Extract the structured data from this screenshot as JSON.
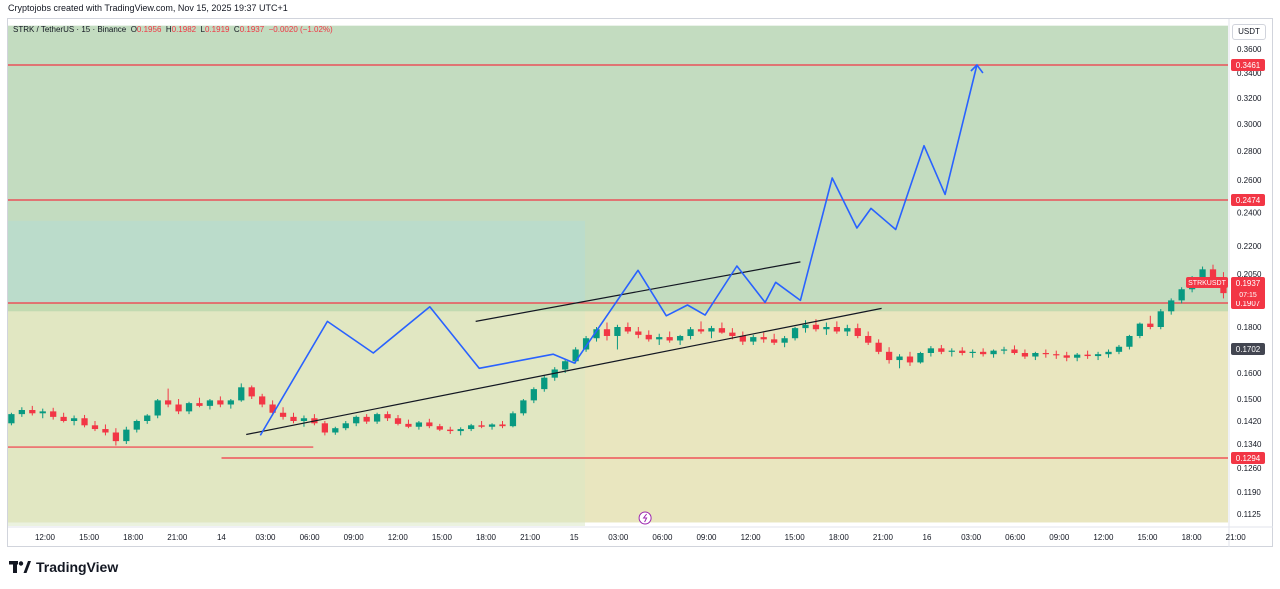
{
  "credit": "Cryptojobs created with TradingView.com, Nov 15, 2025 19:37 UTC+1",
  "legend": {
    "symbol": "STRK / TetherUS · 15 · Binance",
    "o_label": "O",
    "o_value": "0.1956",
    "h_label": "H",
    "h_value": "0.1982",
    "l_label": "L",
    "l_value": "0.1919",
    "c_label": "C",
    "c_value": "0.1937",
    "change": "−0.0020 (−1.02%)"
  },
  "unit_button": "USDT",
  "brand": "TradingView",
  "chart_data": {
    "type": "candlestick",
    "symbol": "STRKUSDT",
    "y_ticks": [
      "0.3600",
      "0.3400",
      "0.3200",
      "0.3000",
      "0.2800",
      "0.2600",
      "0.2400",
      "0.2200",
      "0.2050",
      "0.1800",
      "0.1600",
      "0.1500",
      "0.1420",
      "0.1340",
      "0.1260",
      "0.1190",
      "0.1125"
    ],
    "x_ticks": [
      "12:00",
      "15:00",
      "18:00",
      "21:00",
      "14",
      "03:00",
      "06:00",
      "09:00",
      "12:00",
      "15:00",
      "18:00",
      "21:00",
      "15",
      "03:00",
      "06:00",
      "09:00",
      "12:00",
      "15:00",
      "18:00",
      "21:00",
      "16",
      "03:00",
      "06:00",
      "09:00",
      "12:00",
      "15:00",
      "18:00",
      "21:00"
    ],
    "price_labels": [
      {
        "text": "0.3461",
        "value": 0.3461,
        "color": "#f23645"
      },
      {
        "text": "0.2474",
        "value": 0.2474,
        "color": "#f23645"
      },
      {
        "text": "0.1907",
        "value": 0.1907,
        "color": "#f23645"
      },
      {
        "text": "0.1702",
        "value": 0.1702,
        "color": "#434651"
      },
      {
        "text": "0.1294",
        "value": 0.1294,
        "color": "#f23645"
      }
    ],
    "current_price": {
      "symbol": "STRKUSDT",
      "value_text": "0.1937",
      "countdown": "07:15",
      "value": 0.1937,
      "color": "#f23645"
    },
    "horizontal_levels": [
      {
        "value": 0.3461,
        "color": "#f23645"
      },
      {
        "value": 0.2474,
        "color": "#f23645"
      },
      {
        "value": 0.1907,
        "color": "#f23645"
      },
      {
        "value": 0.133,
        "color": "#f23645",
        "from_day": 0,
        "to_day": 1.26
      },
      {
        "value": 0.1294,
        "color": "#f23645",
        "from_day": 1.0
      }
    ],
    "zones": [
      {
        "name": "upper-green",
        "from": 0.1907,
        "to": 0.38,
        "color": "#c3dcc0"
      },
      {
        "name": "lower-yellow",
        "from": 0.11,
        "to": 0.1907,
        "color": "#e9e6bf"
      }
    ],
    "channel": [
      {
        "name": "channel-upper",
        "from": [
          1.72,
          0.1825
        ],
        "to": [
          2.64,
          0.2115
        ],
        "color": "#131722"
      },
      {
        "name": "channel-lower",
        "from": [
          1.07,
          0.1373
        ],
        "to": [
          2.87,
          0.1883
        ],
        "color": "#131722"
      }
    ],
    "projection_path": [
      [
        1.11,
        0.137
      ],
      [
        1.3,
        0.1825
      ],
      [
        1.43,
        0.1685
      ],
      [
        1.59,
        0.189
      ],
      [
        1.73,
        0.162
      ],
      [
        1.94,
        0.168
      ],
      [
        2.0,
        0.1642
      ],
      [
        2.18,
        0.207
      ],
      [
        2.26,
        0.185
      ],
      [
        2.32,
        0.1898
      ],
      [
        2.37,
        0.1853
      ],
      [
        2.46,
        0.2093
      ],
      [
        2.54,
        0.191
      ],
      [
        2.57,
        0.2009
      ],
      [
        2.64,
        0.192
      ],
      [
        2.73,
        0.2614
      ],
      [
        2.8,
        0.2307
      ],
      [
        2.84,
        0.2424
      ],
      [
        2.91,
        0.2298
      ],
      [
        2.99,
        0.2839
      ],
      [
        3.05,
        0.2509
      ],
      [
        3.14,
        0.3461
      ]
    ],
    "projection_color": "#2962ff",
    "candles": [
      [
        0.142,
        0.143,
        0.14,
        0.141
      ],
      [
        0.141,
        0.142,
        0.139,
        0.14
      ],
      [
        0.14,
        0.1415,
        0.1392,
        0.1408
      ],
      [
        0.1408,
        0.1418,
        0.1396,
        0.1402
      ],
      [
        0.1402,
        0.141,
        0.139,
        0.1396
      ],
      [
        0.1396,
        0.1412,
        0.1388,
        0.1405
      ],
      [
        0.1405,
        0.142,
        0.1398,
        0.1415
      ],
      [
        0.1415,
        0.143,
        0.1405,
        0.1425
      ],
      [
        0.1425,
        0.144,
        0.1415,
        0.142
      ],
      [
        0.142,
        0.1432,
        0.141,
        0.1428
      ],
      [
        0.1428,
        0.144,
        0.1418,
        0.1422
      ],
      [
        0.1422,
        0.1435,
        0.1412,
        0.1418
      ],
      [
        0.1418,
        0.143,
        0.1405,
        0.1412
      ],
      [
        0.1412,
        0.145,
        0.1405,
        0.1445
      ],
      [
        0.1445,
        0.147,
        0.1435,
        0.146
      ],
      [
        0.146,
        0.1475,
        0.144,
        0.1448
      ],
      [
        0.1448,
        0.1465,
        0.143,
        0.1455
      ],
      [
        0.1455,
        0.1468,
        0.1425,
        0.1435
      ],
      [
        0.1435,
        0.145,
        0.1415,
        0.142
      ],
      [
        0.142,
        0.144,
        0.1405,
        0.143
      ],
      [
        0.143,
        0.1442,
        0.1398,
        0.1405
      ],
      [
        0.1405,
        0.142,
        0.1385,
        0.1392
      ],
      [
        0.1392,
        0.1408,
        0.137,
        0.138
      ],
      [
        0.138,
        0.1395,
        0.1335,
        0.135
      ],
      [
        0.135,
        0.14,
        0.134,
        0.139
      ],
      [
        0.139,
        0.1425,
        0.138,
        0.142
      ],
      [
        0.142,
        0.1445,
        0.141,
        0.144
      ],
      [
        0.144,
        0.15,
        0.143,
        0.1495
      ],
      [
        0.1495,
        0.154,
        0.147,
        0.148
      ],
      [
        0.148,
        0.15,
        0.1445,
        0.1455
      ],
      [
        0.1455,
        0.149,
        0.1445,
        0.1485
      ],
      [
        0.1485,
        0.1505,
        0.147,
        0.1475
      ],
      [
        0.1475,
        0.15,
        0.1462,
        0.1495
      ],
      [
        0.1495,
        0.151,
        0.147,
        0.148
      ],
      [
        0.148,
        0.15,
        0.1465,
        0.1495
      ],
      [
        0.1495,
        0.156,
        0.149,
        0.1545
      ],
      [
        0.1545,
        0.1552,
        0.15,
        0.151
      ],
      [
        0.151,
        0.152,
        0.147,
        0.148
      ],
      [
        0.148,
        0.1495,
        0.144,
        0.145
      ],
      [
        0.145,
        0.147,
        0.1425,
        0.1435
      ],
      [
        0.1435,
        0.145,
        0.1412,
        0.142
      ],
      [
        0.142,
        0.144,
        0.14,
        0.143
      ],
      [
        0.143,
        0.1445,
        0.1405,
        0.1412
      ],
      [
        0.1412,
        0.142,
        0.137,
        0.138
      ],
      [
        0.138,
        0.14,
        0.1372,
        0.1395
      ],
      [
        0.1395,
        0.142,
        0.1388,
        0.1412
      ],
      [
        0.1412,
        0.144,
        0.1402,
        0.1435
      ],
      [
        0.1435,
        0.1445,
        0.141,
        0.1418
      ],
      [
        0.1418,
        0.145,
        0.141,
        0.1445
      ],
      [
        0.1445,
        0.1455,
        0.142,
        0.143
      ],
      [
        0.143,
        0.1442,
        0.1405,
        0.141
      ],
      [
        0.141,
        0.1425,
        0.1395,
        0.14
      ],
      [
        0.14,
        0.142,
        0.139,
        0.1415
      ],
      [
        0.1415,
        0.1428,
        0.1395,
        0.1402
      ],
      [
        0.1402,
        0.141,
        0.1385,
        0.139
      ],
      [
        0.139,
        0.14,
        0.1375,
        0.1385
      ],
      [
        0.1385,
        0.1398,
        0.137,
        0.1392
      ],
      [
        0.1392,
        0.141,
        0.1385,
        0.1405
      ],
      [
        0.1405,
        0.142,
        0.1395,
        0.14
      ],
      [
        0.14,
        0.1412,
        0.139,
        0.1408
      ],
      [
        0.1408,
        0.142,
        0.1395,
        0.1402
      ],
      [
        0.1402,
        0.1455,
        0.1398,
        0.1448
      ],
      [
        0.1448,
        0.15,
        0.144,
        0.1495
      ],
      [
        0.1495,
        0.1545,
        0.1485,
        0.1538
      ],
      [
        0.1538,
        0.159,
        0.1528,
        0.1582
      ],
      [
        0.1582,
        0.1625,
        0.157,
        0.1615
      ],
      [
        0.1615,
        0.166,
        0.16,
        0.165
      ],
      [
        0.165,
        0.171,
        0.164,
        0.17
      ],
      [
        0.17,
        0.176,
        0.169,
        0.175
      ],
      [
        0.175,
        0.18,
        0.1735,
        0.179
      ],
      [
        0.179,
        0.182,
        0.174,
        0.176
      ],
      [
        0.176,
        0.181,
        0.17,
        0.18
      ],
      [
        0.18,
        0.182,
        0.177,
        0.178
      ],
      [
        0.178,
        0.18,
        0.175,
        0.1765
      ],
      [
        0.1765,
        0.1785,
        0.1735,
        0.1745
      ],
      [
        0.1745,
        0.177,
        0.172,
        0.1755
      ],
      [
        0.1755,
        0.178,
        0.173,
        0.174
      ],
      [
        0.174,
        0.1765,
        0.172,
        0.176
      ],
      [
        0.176,
        0.18,
        0.1745,
        0.179
      ],
      [
        0.179,
        0.1825,
        0.177,
        0.178
      ],
      [
        0.178,
        0.1805,
        0.175,
        0.1795
      ],
      [
        0.1795,
        0.182,
        0.177,
        0.1775
      ],
      [
        0.1775,
        0.1795,
        0.1745,
        0.176
      ],
      [
        0.176,
        0.178,
        0.172,
        0.1735
      ],
      [
        0.1735,
        0.1765,
        0.172,
        0.1755
      ],
      [
        0.1755,
        0.1775,
        0.173,
        0.1745
      ],
      [
        0.1745,
        0.177,
        0.172,
        0.173
      ],
      [
        0.173,
        0.176,
        0.171,
        0.175
      ],
      [
        0.175,
        0.18,
        0.174,
        0.1795
      ],
      [
        0.1795,
        0.183,
        0.1775,
        0.181
      ],
      [
        0.181,
        0.1835,
        0.178,
        0.179
      ],
      [
        0.179,
        0.182,
        0.1765,
        0.18
      ],
      [
        0.18,
        0.1825,
        0.177,
        0.178
      ],
      [
        0.178,
        0.181,
        0.176,
        0.1795
      ],
      [
        0.1795,
        0.1815,
        0.175,
        0.176
      ],
      [
        0.176,
        0.178,
        0.172,
        0.173
      ],
      [
        0.173,
        0.1745,
        0.168,
        0.169
      ],
      [
        0.169,
        0.171,
        0.164,
        0.1655
      ],
      [
        0.1655,
        0.168,
        0.162,
        0.167
      ],
      [
        0.167,
        0.169,
        0.163,
        0.1645
      ],
      [
        0.1645,
        0.169,
        0.164,
        0.1685
      ],
      [
        0.1685,
        0.1715,
        0.167,
        0.1705
      ],
      [
        0.1705,
        0.172,
        0.168,
        0.169
      ],
      [
        0.169,
        0.1705,
        0.167,
        0.1695
      ],
      [
        0.1695,
        0.171,
        0.1675,
        0.1685
      ],
      [
        0.1685,
        0.17,
        0.1665,
        0.169
      ],
      [
        0.169,
        0.1705,
        0.167,
        0.168
      ],
      [
        0.168,
        0.17,
        0.1665,
        0.1695
      ],
      [
        0.1695,
        0.1712,
        0.168,
        0.17
      ],
      [
        0.17,
        0.1718,
        0.1678,
        0.1685
      ],
      [
        0.1685,
        0.17,
        0.166,
        0.167
      ],
      [
        0.167,
        0.169,
        0.1655,
        0.1685
      ],
      [
        0.1685,
        0.17,
        0.1665,
        0.168
      ],
      [
        0.168,
        0.1695,
        0.166,
        0.1675
      ],
      [
        0.1675,
        0.169,
        0.165,
        0.1665
      ],
      [
        0.1665,
        0.1685,
        0.165,
        0.1678
      ],
      [
        0.1678,
        0.1695,
        0.166,
        0.1672
      ],
      [
        0.1672,
        0.169,
        0.1655,
        0.168
      ],
      [
        0.168,
        0.17,
        0.1665,
        0.169
      ],
      [
        0.169,
        0.172,
        0.168,
        0.1712
      ],
      [
        0.1712,
        0.1765,
        0.17,
        0.176
      ],
      [
        0.176,
        0.182,
        0.175,
        0.1815
      ],
      [
        0.1815,
        0.185,
        0.179,
        0.18
      ],
      [
        0.18,
        0.188,
        0.179,
        0.187
      ],
      [
        0.187,
        0.193,
        0.1855,
        0.192
      ],
      [
        0.192,
        0.1985,
        0.1905,
        0.1975
      ],
      [
        0.1975,
        0.204,
        0.196,
        0.202
      ],
      [
        0.202,
        0.209,
        0.2005,
        0.2075
      ],
      [
        0.2075,
        0.21,
        0.199,
        0.203
      ],
      [
        0.203,
        0.206,
        0.193,
        0.1956
      ],
      [
        0.1956,
        0.1982,
        0.1919,
        0.1937
      ]
    ]
  }
}
